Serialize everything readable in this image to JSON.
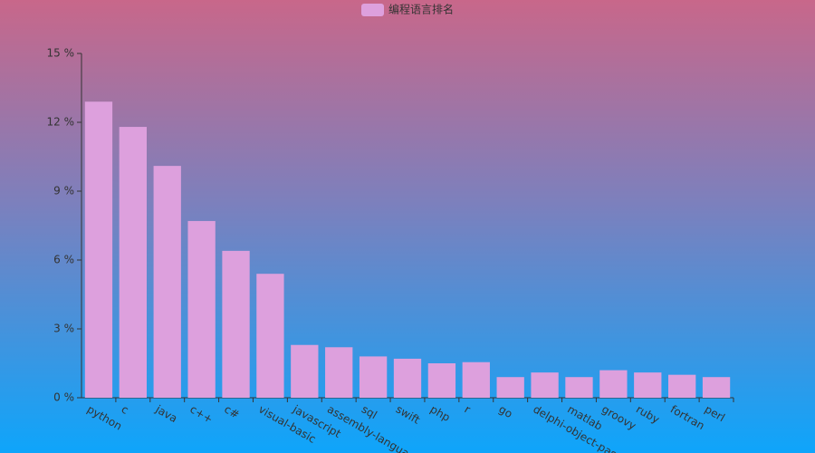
{
  "chart_data": {
    "type": "bar",
    "legend": "编程语言排名",
    "categories": [
      "python",
      "c",
      "java",
      "c++",
      "c#",
      "visual-basic",
      "javascript",
      "assembly-language",
      "sql",
      "swift",
      "php",
      "r",
      "go",
      "delphi-object-pascal",
      "matlab",
      "groovy",
      "ruby",
      "fortran",
      "perl"
    ],
    "values": [
      12.9,
      11.8,
      10.1,
      7.7,
      6.4,
      5.4,
      2.3,
      2.2,
      1.8,
      1.7,
      1.5,
      1.55,
      0.9,
      1.1,
      0.9,
      1.2,
      1.1,
      1.0,
      0.9
    ],
    "color": "#dda0dd",
    "ylim": [
      0,
      15
    ],
    "yticks": [
      {
        "value": 0,
        "label": "0 %"
      },
      {
        "value": 3,
        "label": "3 %"
      },
      {
        "value": 6,
        "label": "6 %"
      },
      {
        "value": 9,
        "label": "9 %"
      },
      {
        "value": 12,
        "label": "12 %"
      },
      {
        "value": 15,
        "label": "15 %"
      }
    ]
  }
}
